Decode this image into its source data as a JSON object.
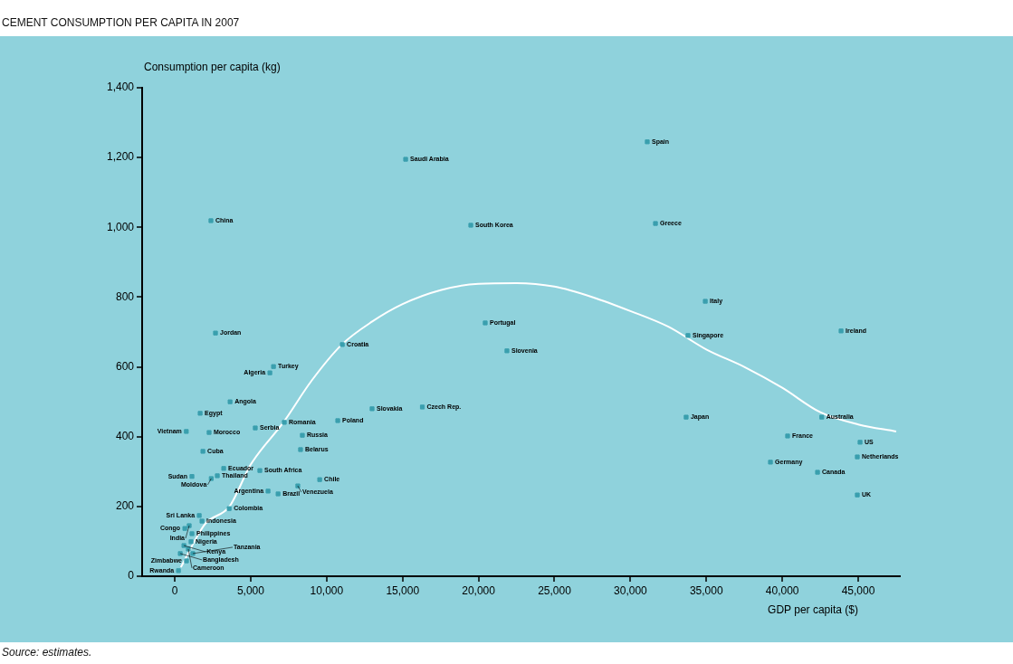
{
  "chart_data": {
    "type": "scatter",
    "title": "CEMENT CONSUMPTION PER CAPITA IN 2007",
    "xlabel": "GDP per capita ($)",
    "ylabel": "Consumption per capita (kg)",
    "xlim": [
      -2150,
      47800
    ],
    "ylim": [
      0,
      1400
    ],
    "xticks": [
      0,
      {
        "value": 5000,
        "label": "5,000"
      },
      {
        "value": 10000,
        "label": "10,000"
      },
      {
        "value": 15000,
        "label": "15,000"
      },
      {
        "value": 20000,
        "label": "20,000"
      },
      {
        "value": 25000,
        "label": "25,000"
      },
      {
        "value": 30000,
        "label": "30,000"
      },
      {
        "value": 35000,
        "label": "35,000"
      },
      {
        "value": 40000,
        "label": "40,000"
      },
      {
        "value": 45000,
        "label": "45,000"
      }
    ],
    "yticks": [
      0,
      200,
      400,
      600,
      800,
      {
        "value": 1000,
        "label": "1,000"
      },
      {
        "value": 1200,
        "label": "1,200"
      },
      {
        "value": 1400,
        "label": "1,400"
      }
    ],
    "grid": false,
    "legend": false,
    "marker": "square",
    "series": [
      {
        "type": "scatter",
        "color": "#3a9fae",
        "x": [
          2380,
          2680,
          15200,
          19490,
          31110,
          31650,
          20440,
          21870,
          34930,
          33790,
          43870,
          33670,
          42600,
          40350,
          45120,
          44940,
          39220,
          42320,
          44940,
          11030,
          12990,
          16300,
          10730,
          7210,
          8400,
          8280,
          9540,
          8100,
          6140,
          6800,
          5600,
          5300,
          6500,
          6260,
          3640,
          1670,
          760,
          2260,
          1850,
          3220,
          2800,
          1130,
          2400,
          3580,
          1610,
          1790,
          950,
          660,
          1130,
          1070,
          600,
          360,
          890,
          1190,
          770,
          240
        ],
        "values": [
          1019,
          697,
          1195,
          1006,
          1245,
          1011,
          726,
          646,
          788,
          690,
          703,
          456,
          456,
          402,
          384,
          342,
          327,
          298,
          233,
          664,
          480,
          485,
          446,
          441,
          404,
          363,
          277,
          259,
          244,
          236,
          303,
          425,
          601,
          583,
          500,
          467,
          415,
          412,
          358,
          309,
          288,
          286,
          280,
          194,
          174,
          158,
          145,
          137,
          122,
          99,
          88,
          65,
          78,
          65,
          44,
          16
        ]
      },
      {
        "type": "line",
        "color": "#ffffff",
        "marker": "none",
        "line_style": "solid",
        "x": [
          400,
          2000,
          3600,
          5000,
          7150,
          9000,
          11000,
          13000,
          15000,
          17500,
          20000,
          22500,
          25000,
          27500,
          30000,
          32500,
          35000,
          37500,
          40000,
          42500,
          45000,
          47500
        ],
        "values": [
          26,
          150,
          200,
          320,
          441,
          560,
          664,
          730,
          780,
          820,
          838,
          840,
          830,
          800,
          760,
          715,
          650,
          600,
          540,
          470,
          435,
          415
        ]
      }
    ],
    "annotations": [
      {
        "text": "China",
        "x": 2380,
        "y": 1019
      },
      {
        "text": "Jordan",
        "x": 2680,
        "y": 697
      },
      {
        "text": "Saudi Arabia",
        "x": 15200,
        "y": 1195
      },
      {
        "text": "South Korea",
        "x": 19490,
        "y": 1006
      },
      {
        "text": "Spain",
        "x": 31110,
        "y": 1245
      },
      {
        "text": "Greece",
        "x": 31650,
        "y": 1011
      },
      {
        "text": "Portugal",
        "x": 20440,
        "y": 726
      },
      {
        "text": "Slovenia",
        "x": 21870,
        "y": 646
      },
      {
        "text": "Italy",
        "x": 34930,
        "y": 788
      },
      {
        "text": "Singapore",
        "x": 33790,
        "y": 690
      },
      {
        "text": "Ireland",
        "x": 43870,
        "y": 703
      },
      {
        "text": "Japan",
        "x": 33670,
        "y": 456
      },
      {
        "text": "Australia",
        "x": 42600,
        "y": 456
      },
      {
        "text": "France",
        "x": 40350,
        "y": 402
      },
      {
        "text": "US",
        "x": 45120,
        "y": 384
      },
      {
        "text": "Netherlands",
        "x": 44940,
        "y": 342
      },
      {
        "text": "Germany",
        "x": 39220,
        "y": 327
      },
      {
        "text": "Canada",
        "x": 42320,
        "y": 298
      },
      {
        "text": "UK",
        "x": 44940,
        "y": 233
      },
      {
        "text": "Croatia",
        "x": 11030,
        "y": 664
      },
      {
        "text": "Slovakia",
        "x": 12990,
        "y": 480
      },
      {
        "text": "Czech Rep.",
        "x": 16300,
        "y": 485
      },
      {
        "text": "Poland",
        "x": 10730,
        "y": 446
      },
      {
        "text": "Romania",
        "x": 7210,
        "y": 441
      },
      {
        "text": "Russia",
        "x": 8400,
        "y": 404
      },
      {
        "text": "Belarus",
        "x": 8280,
        "y": 363
      },
      {
        "text": "Chile",
        "x": 9540,
        "y": 277
      },
      {
        "text": "Venezuela",
        "x": 8100,
        "y": 259
      },
      {
        "text": "Argentina",
        "x": 6140,
        "y": 244
      },
      {
        "text": "Brazil",
        "x": 6800,
        "y": 236
      },
      {
        "text": "South Africa",
        "x": 5600,
        "y": 303
      },
      {
        "text": "Serbia",
        "x": 5300,
        "y": 425
      },
      {
        "text": "Turkey",
        "x": 6500,
        "y": 601
      },
      {
        "text": "Algeria",
        "x": 6260,
        "y": 583
      },
      {
        "text": "Angola",
        "x": 3640,
        "y": 500
      },
      {
        "text": "Egypt",
        "x": 1670,
        "y": 467
      },
      {
        "text": "Vietnam",
        "x": 760,
        "y": 415
      },
      {
        "text": "Morocco",
        "x": 2260,
        "y": 412
      },
      {
        "text": "Cuba",
        "x": 1850,
        "y": 358
      },
      {
        "text": "Ecuador",
        "x": 3220,
        "y": 309
      },
      {
        "text": "Thailand",
        "x": 2800,
        "y": 288
      },
      {
        "text": "Sudan",
        "x": 1130,
        "y": 286
      },
      {
        "text": "Moldova",
        "x": 2400,
        "y": 280
      },
      {
        "text": "Colombia",
        "x": 3580,
        "y": 194
      },
      {
        "text": "Sri Lanka",
        "x": 1610,
        "y": 174
      },
      {
        "text": "Indonesia",
        "x": 1790,
        "y": 158
      },
      {
        "text": "India",
        "x": 950,
        "y": 145
      },
      {
        "text": "Congo",
        "x": 660,
        "y": 137
      },
      {
        "text": "Philippines",
        "x": 1130,
        "y": 122
      },
      {
        "text": "Nigeria",
        "x": 1070,
        "y": 99
      },
      {
        "text": "Kenya",
        "x": 600,
        "y": 88
      },
      {
        "text": "Bangladesh",
        "x": 360,
        "y": 65
      },
      {
        "text": "Cameroon",
        "x": 890,
        "y": 78
      },
      {
        "text": "Tanzania",
        "x": 1190,
        "y": 65
      },
      {
        "text": "Zimbabwe",
        "x": 770,
        "y": 44
      },
      {
        "text": "Rwanda",
        "x": 240,
        "y": 16
      },
      "Source: estimates."
    ]
  }
}
